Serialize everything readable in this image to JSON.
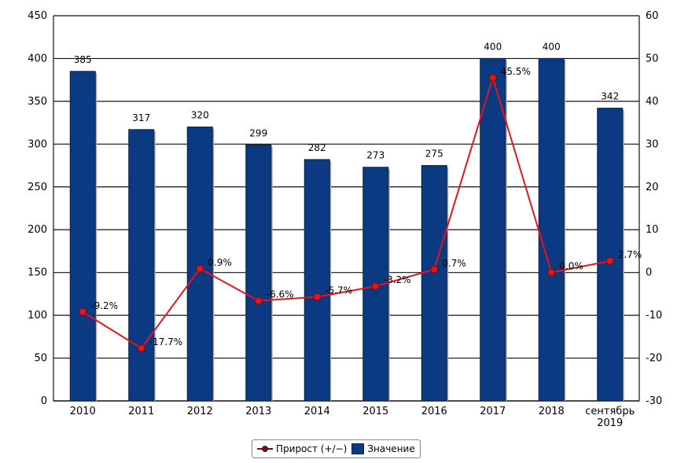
{
  "chart_data": {
    "type": "bar",
    "categories": [
      "2010",
      "2011",
      "2012",
      "2013",
      "2014",
      "2015",
      "2016",
      "2017",
      "2018",
      "сентябрь 2019"
    ],
    "category_lines": [
      [
        "2010"
      ],
      [
        "2011"
      ],
      [
        "2012"
      ],
      [
        "2013"
      ],
      [
        "2014"
      ],
      [
        "2015"
      ],
      [
        "2016"
      ],
      [
        "2017"
      ],
      [
        "2018"
      ],
      [
        "сентябрь",
        "2019"
      ]
    ],
    "series": [
      {
        "name": "Значение",
        "type": "bar",
        "axis": "left",
        "color": "#0b3a82",
        "values": [
          385,
          317,
          320,
          299,
          282,
          273,
          275,
          400,
          400,
          342
        ],
        "labels": [
          "385",
          "317",
          "320",
          "299",
          "282",
          "273",
          "275",
          "400",
          "400",
          "342"
        ]
      },
      {
        "name": "Прирост (+/−)",
        "type": "line",
        "axis": "right",
        "color": "#e8141c",
        "marker_color": "#6b0f1a",
        "values": [
          -9.2,
          -17.7,
          0.9,
          -6.6,
          -5.7,
          -3.2,
          0.7,
          45.5,
          0.0,
          2.7
        ],
        "labels": [
          "-9.2%",
          "-17.7%",
          "0.9%",
          "-6.6%",
          "-5.7%",
          "-3.2%",
          "0.7%",
          "45.5%",
          "0.0%",
          "2.7%"
        ]
      }
    ],
    "y_left": {
      "min": 0,
      "max": 450,
      "step": 50
    },
    "y_right": {
      "min": -30,
      "max": 60,
      "step": 10
    },
    "grid": true,
    "legend_position": "bottom-center"
  },
  "legend": {
    "growth_label": "Прирост (+/−)",
    "value_label": "Значение"
  }
}
